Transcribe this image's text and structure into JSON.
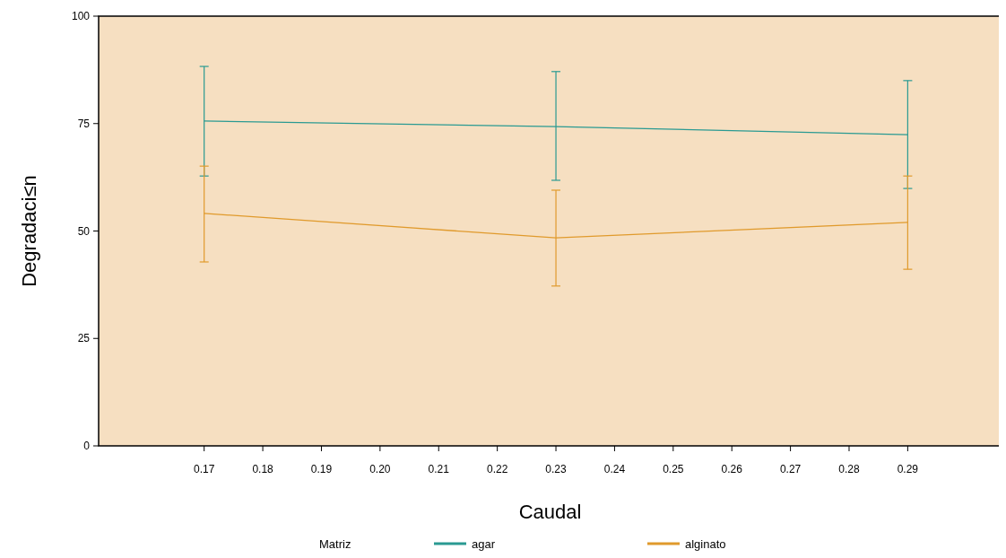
{
  "chart_data": {
    "type": "line",
    "xlabel": "Caudal",
    "ylabel": "Degradaci≤n",
    "legend_title": "Matriz",
    "legend": "bottom",
    "x": [
      0.17,
      0.23,
      0.29
    ],
    "series": [
      {
        "name": "agar",
        "color": "#2a9a92",
        "values": [
          75.6,
          74.3,
          72.4
        ],
        "errors": [
          [
            62.8,
            88.3
          ],
          [
            61.8,
            87.1
          ],
          [
            59.9,
            85.0
          ]
        ]
      },
      {
        "name": "alginato",
        "color": "#e09a2c",
        "values": [
          54.1,
          48.4,
          52.0
        ],
        "errors": [
          [
            42.8,
            65.1
          ],
          [
            37.2,
            59.5
          ],
          [
            41.1,
            62.8
          ]
        ]
      }
    ],
    "xlim": [
      0.152,
      0.306
    ],
    "xticks": [
      {
        "value": 0.17,
        "label": "0.17"
      },
      {
        "value": 0.18,
        "label": "0.18"
      },
      {
        "value": 0.19,
        "label": "0.19"
      },
      {
        "value": 0.2,
        "label": "0.20"
      },
      {
        "value": 0.21,
        "label": "0.21"
      },
      {
        "value": 0.22,
        "label": "0.22"
      },
      {
        "value": 0.23,
        "label": "0.23"
      },
      {
        "value": 0.24,
        "label": "0.24"
      },
      {
        "value": 0.25,
        "label": "0.25"
      },
      {
        "value": 0.26,
        "label": "0.26"
      },
      {
        "value": 0.27,
        "label": "0.27"
      },
      {
        "value": 0.28,
        "label": "0.28"
      },
      {
        "value": 0.29,
        "label": "0.29"
      }
    ],
    "ylim": [
      0,
      100
    ],
    "yticks": [
      0,
      25,
      50,
      75,
      100
    ],
    "grid": false,
    "marker": "none",
    "line_style": "solid"
  }
}
